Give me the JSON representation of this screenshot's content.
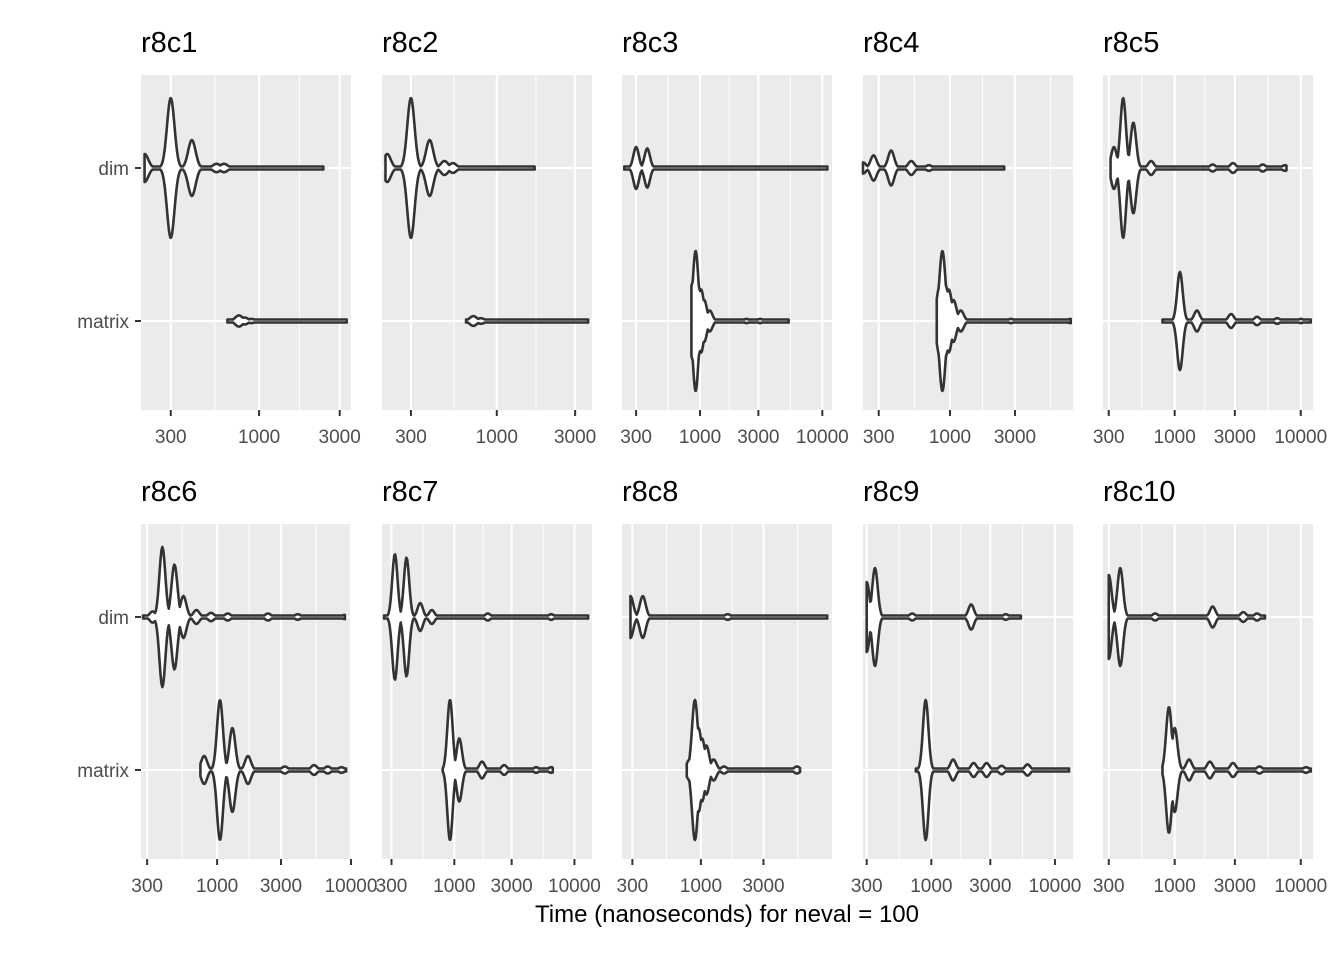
{
  "chart_data": {
    "type": "violin",
    "xlabel": "Time (nanoseconds) for neval = 100",
    "ylabel": "",
    "x_scale": "log10",
    "categories": [
      "dim",
      "matrix"
    ],
    "panels": [
      {
        "title": "r8c1",
        "xlim": [
          200,
          3500
        ],
        "xticks": [
          300,
          1000,
          3000
        ],
        "series": [
          {
            "name": "dim",
            "min": 210,
            "max": 2400,
            "peaks": [
              [
                210,
                0.2
              ],
              [
                300,
                1.0
              ],
              [
                400,
                0.4
              ],
              [
                560,
                0.06
              ],
              [
                620,
                0.06
              ]
            ]
          },
          {
            "name": "matrix",
            "min": 650,
            "max": 3300,
            "peaks": [
              [
                760,
                0.08
              ],
              [
                820,
                0.05
              ],
              [
                900,
                0.03
              ]
            ]
          }
        ]
      },
      {
        "title": "r8c2",
        "xlim": [
          200,
          3800
        ],
        "xticks": [
          300,
          1000,
          3000
        ],
        "series": [
          {
            "name": "dim",
            "min": 210,
            "max": 1700,
            "peaks": [
              [
                215,
                0.2
              ],
              [
                300,
                1.0
              ],
              [
                390,
                0.4
              ],
              [
                480,
                0.1
              ],
              [
                540,
                0.07
              ]
            ]
          },
          {
            "name": "matrix",
            "min": 650,
            "max": 3600,
            "peaks": [
              [
                720,
                0.07
              ],
              [
                800,
                0.04
              ]
            ]
          }
        ]
      },
      {
        "title": "r8c3",
        "xlim": [
          230,
          12000
        ],
        "xticks": [
          300,
          1000,
          3000,
          10000
        ],
        "series": [
          {
            "name": "dim",
            "min": 240,
            "max": 11000,
            "peaks": [
              [
                300,
                0.3
              ],
              [
                370,
                0.28
              ],
              [
                3000,
                0.02
              ]
            ]
          },
          {
            "name": "matrix",
            "min": 850,
            "max": 5300,
            "peaks": [
              [
                870,
                0.55
              ],
              [
                920,
                1.0
              ],
              [
                970,
                0.5
              ],
              [
                1020,
                0.45
              ],
              [
                1080,
                0.3
              ],
              [
                1200,
                0.15
              ],
              [
                2400,
                0.03
              ],
              [
                3100,
                0.03
              ]
            ]
          }
        ]
      },
      {
        "title": "r8c4",
        "xlim": [
          230,
          8000
        ],
        "xticks": [
          300,
          1000,
          3000
        ],
        "series": [
          {
            "name": "dim",
            "min": 230,
            "max": 2500,
            "peaks": [
              [
                230,
                0.08
              ],
              [
                275,
                0.18
              ],
              [
                370,
                0.25
              ],
              [
                520,
                0.1
              ],
              [
                700,
                0.04
              ],
              [
                2000,
                0.02
              ]
            ]
          },
          {
            "name": "matrix",
            "min": 800,
            "max": 7700,
            "peaks": [
              [
                840,
                0.5
              ],
              [
                880,
                1.0
              ],
              [
                930,
                0.5
              ],
              [
                980,
                0.45
              ],
              [
                1060,
                0.3
              ],
              [
                1200,
                0.15
              ],
              [
                2800,
                0.03
              ],
              [
                7700,
                0.03
              ]
            ]
          }
        ]
      },
      {
        "title": "r8c5",
        "xlim": [
          270,
          12500
        ],
        "xticks": [
          300,
          1000,
          3000,
          10000
        ],
        "series": [
          {
            "name": "dim",
            "min": 310,
            "max": 7700,
            "peaks": [
              [
                330,
                0.3
              ],
              [
                390,
                1.0
              ],
              [
                470,
                0.65
              ],
              [
                650,
                0.1
              ],
              [
                2000,
                0.05
              ],
              [
                2900,
                0.07
              ],
              [
                5000,
                0.05
              ],
              [
                7500,
                0.04
              ]
            ]
          },
          {
            "name": "matrix",
            "min": 800,
            "max": 12000,
            "peaks": [
              [
                1100,
                0.7
              ],
              [
                1500,
                0.15
              ],
              [
                2800,
                0.1
              ],
              [
                4500,
                0.06
              ],
              [
                6500,
                0.04
              ],
              [
                10000,
                0.03
              ]
            ]
          }
        ]
      },
      {
        "title": "r8c6",
        "xlim": [
          270,
          10000
        ],
        "xticks": [
          300,
          1000,
          3000,
          10000
        ],
        "series": [
          {
            "name": "dim",
            "min": 280,
            "max": 9000,
            "peaks": [
              [
                330,
                0.08
              ],
              [
                390,
                1.0
              ],
              [
                480,
                0.75
              ],
              [
                560,
                0.3
              ],
              [
                700,
                0.1
              ],
              [
                900,
                0.06
              ],
              [
                1200,
                0.05
              ],
              [
                2400,
                0.05
              ],
              [
                4000,
                0.04
              ],
              [
                9000,
                0.03
              ]
            ]
          },
          {
            "name": "matrix",
            "min": 750,
            "max": 9200,
            "peaks": [
              [
                800,
                0.2
              ],
              [
                1050,
                1.0
              ],
              [
                1300,
                0.6
              ],
              [
                1700,
                0.2
              ],
              [
                3200,
                0.05
              ],
              [
                5300,
                0.07
              ],
              [
                6700,
                0.05
              ],
              [
                8500,
                0.04
              ]
            ]
          }
        ]
      },
      {
        "title": "r8c7",
        "xlim": [
          250,
          14000
        ],
        "xticks": [
          300,
          1000,
          3000,
          10000
        ],
        "series": [
          {
            "name": "dim",
            "min": 260,
            "max": 13000,
            "peaks": [
              [
                320,
                0.9
              ],
              [
                400,
                0.85
              ],
              [
                520,
                0.2
              ],
              [
                650,
                0.1
              ],
              [
                1900,
                0.05
              ],
              [
                6400,
                0.04
              ]
            ]
          },
          {
            "name": "matrix",
            "min": 800,
            "max": 6600,
            "peaks": [
              [
                920,
                1.0
              ],
              [
                1100,
                0.45
              ],
              [
                1700,
                0.12
              ],
              [
                2600,
                0.07
              ],
              [
                4800,
                0.04
              ],
              [
                6400,
                0.04
              ]
            ]
          }
        ]
      },
      {
        "title": "r8c8",
        "xlim": [
          250,
          10000
        ],
        "xticks": [
          300,
          1000,
          3000
        ],
        "series": [
          {
            "name": "dim",
            "min": 290,
            "max": 9200,
            "peaks": [
              [
                290,
                0.3
              ],
              [
                360,
                0.3
              ],
              [
                1600,
                0.04
              ]
            ]
          },
          {
            "name": "matrix",
            "min": 780,
            "max": 5700,
            "peaks": [
              [
                820,
                0.15
              ],
              [
                900,
                1.0
              ],
              [
                960,
                0.6
              ],
              [
                1020,
                0.45
              ],
              [
                1100,
                0.35
              ],
              [
                1250,
                0.15
              ],
              [
                1500,
                0.05
              ],
              [
                5400,
                0.05
              ]
            ]
          }
        ]
      },
      {
        "title": "r8c9",
        "xlim": [
          280,
          14000
        ],
        "xticks": [
          300,
          1000,
          3000,
          10000
        ],
        "series": [
          {
            "name": "dim",
            "min": 300,
            "max": 5300,
            "peaks": [
              [
                300,
                0.5
              ],
              [
                350,
                0.7
              ],
              [
                700,
                0.05
              ],
              [
                2100,
                0.18
              ],
              [
                4000,
                0.04
              ]
            ]
          },
          {
            "name": "matrix",
            "min": 750,
            "max": 13000,
            "peaks": [
              [
                900,
                1.0
              ],
              [
                1500,
                0.15
              ],
              [
                2200,
                0.1
              ],
              [
                2800,
                0.1
              ],
              [
                3700,
                0.06
              ],
              [
                6000,
                0.08
              ]
            ]
          }
        ]
      },
      {
        "title": "r8c10",
        "xlim": [
          270,
          12500
        ],
        "xticks": [
          300,
          1000,
          3000,
          10000
        ],
        "series": [
          {
            "name": "dim",
            "min": 300,
            "max": 5200,
            "peaks": [
              [
                300,
                0.6
              ],
              [
                370,
                0.7
              ],
              [
                700,
                0.05
              ],
              [
                2000,
                0.15
              ],
              [
                3500,
                0.07
              ],
              [
                4500,
                0.05
              ]
            ]
          },
          {
            "name": "matrix",
            "min": 800,
            "max": 12000,
            "peaks": [
              [
                900,
                0.9
              ],
              [
                1000,
                0.6
              ],
              [
                1300,
                0.15
              ],
              [
                1900,
                0.12
              ],
              [
                2900,
                0.1
              ],
              [
                4700,
                0.05
              ],
              [
                11000,
                0.04
              ]
            ]
          }
        ]
      }
    ]
  }
}
